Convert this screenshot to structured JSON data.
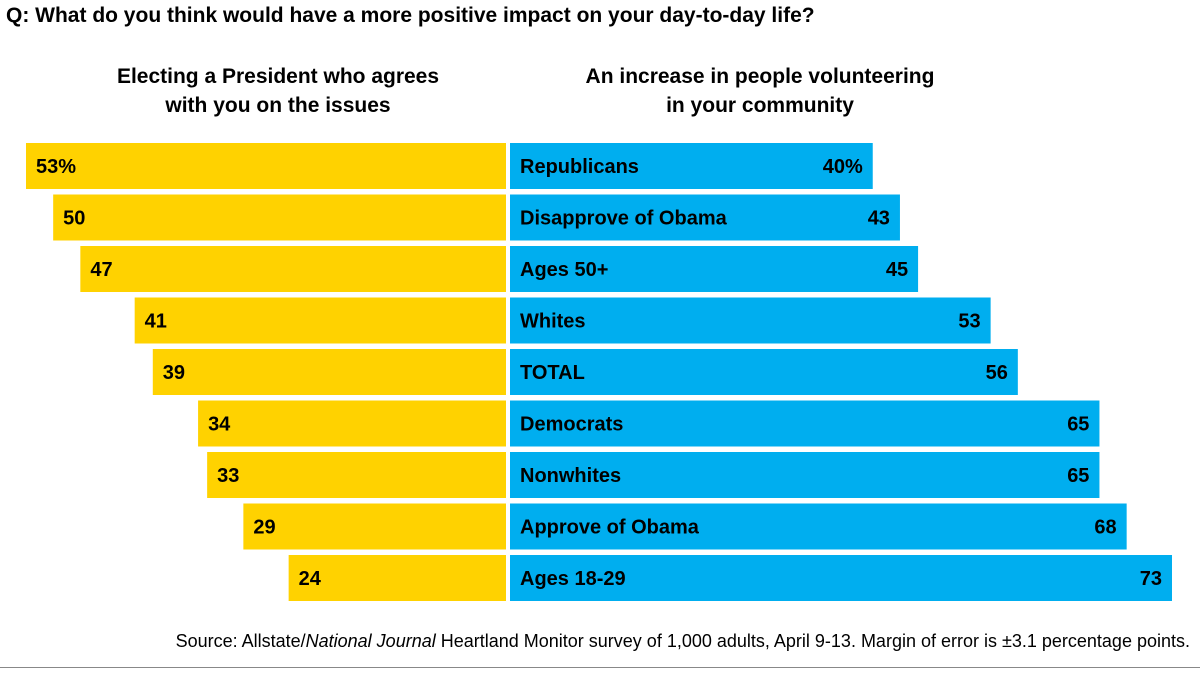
{
  "question": "Q: What do you think would have a more positive impact on your day-to-day life?",
  "source": {
    "prefix": "Source: Allstate/",
    "italic": "National Journal",
    "suffix": " Heartland Monitor survey of 1,000 adults, April 9-13. Margin of error is ±3.1 percentage points."
  },
  "colors": {
    "left": "#FFD200",
    "right": "#00AEEF"
  },
  "chart_data": {
    "type": "bar",
    "orientation": "horizontal-diverging",
    "left_series": {
      "name": "Electing a President who agrees with you on the issues",
      "name_lines": [
        "Electing a President who agrees",
        "with you on the issues"
      ],
      "values": [
        53,
        50,
        47,
        41,
        39,
        34,
        33,
        29,
        24
      ],
      "labels": [
        "53%",
        "50",
        "47",
        "41",
        "39",
        "34",
        "33",
        "29",
        "24"
      ]
    },
    "right_series": {
      "name": "An increase in people volunteering in your community",
      "name_lines": [
        "An increase in people volunteering",
        "in your community"
      ],
      "values": [
        40,
        43,
        45,
        53,
        56,
        65,
        65,
        68,
        73
      ],
      "labels": [
        "40%",
        "43",
        "45",
        "53",
        "56",
        "65",
        "65",
        "68",
        "73"
      ]
    },
    "categories": [
      "Republicans",
      "Disapprove of Obama",
      "Ages 50+",
      "Whites",
      "TOTAL",
      "Democrats",
      "Nonwhites",
      "Approve of Obama",
      "Ages 18-29"
    ]
  }
}
